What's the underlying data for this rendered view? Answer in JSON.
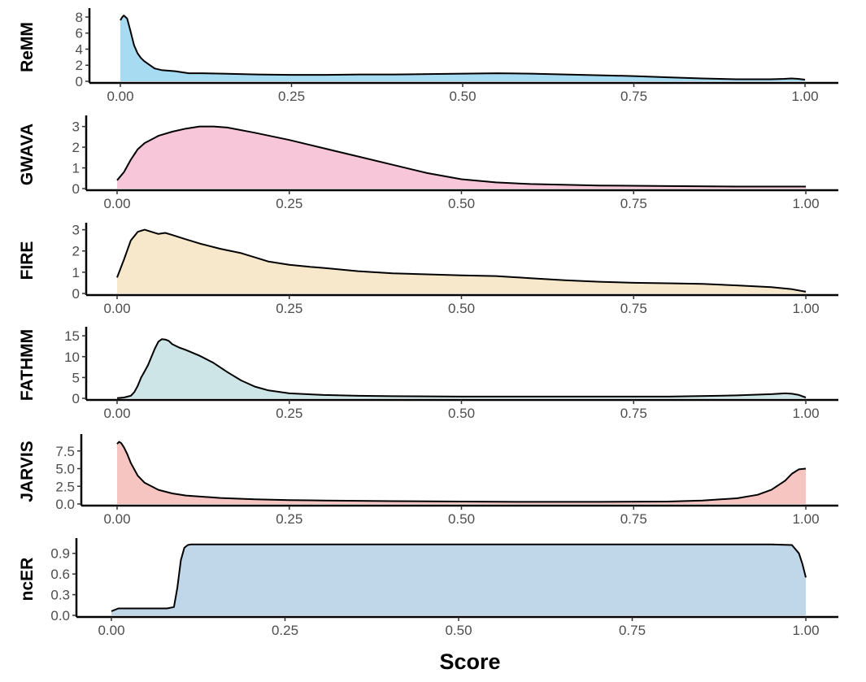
{
  "chart_data": {
    "type": "area",
    "xlabel": "Score",
    "x_ticks": [
      "0.00",
      "0.25",
      "0.50",
      "0.75",
      "1.00"
    ],
    "xlim": [
      0,
      1
    ],
    "grid": false,
    "panels": [
      {
        "name": "ReMM",
        "fill": "#a6dbf2",
        "ylim": [
          0,
          8.5
        ],
        "y_ticks": [
          {
            "v": 0,
            "t": "0"
          },
          {
            "v": 2,
            "t": "2"
          },
          {
            "v": 4,
            "t": "4"
          },
          {
            "v": 6,
            "t": "6"
          },
          {
            "v": 8,
            "t": "8"
          }
        ],
        "x": [
          0.0,
          0.003,
          0.005,
          0.01,
          0.015,
          0.02,
          0.025,
          0.03,
          0.035,
          0.04,
          0.05,
          0.06,
          0.08,
          0.1,
          0.12,
          0.15,
          0.2,
          0.25,
          0.3,
          0.35,
          0.4,
          0.45,
          0.5,
          0.55,
          0.6,
          0.65,
          0.7,
          0.75,
          0.8,
          0.85,
          0.9,
          0.95,
          0.97,
          0.98,
          0.99,
          1.0
        ],
        "y": [
          7.6,
          8.0,
          8.2,
          7.8,
          6.2,
          4.5,
          3.5,
          2.9,
          2.5,
          2.2,
          1.6,
          1.4,
          1.25,
          1.0,
          1.0,
          0.95,
          0.85,
          0.8,
          0.8,
          0.85,
          0.85,
          0.9,
          0.95,
          1.0,
          0.95,
          0.85,
          0.75,
          0.65,
          0.5,
          0.35,
          0.25,
          0.25,
          0.3,
          0.35,
          0.3,
          0.2
        ]
      },
      {
        "name": "GWAVA",
        "fill": "#f8c6d9",
        "ylim": [
          0,
          3.3
        ],
        "y_ticks": [
          {
            "v": 0,
            "t": "0"
          },
          {
            "v": 1,
            "t": "1"
          },
          {
            "v": 2,
            "t": "2"
          },
          {
            "v": 3,
            "t": "3"
          }
        ],
        "x": [
          0.0,
          0.01,
          0.02,
          0.03,
          0.04,
          0.06,
          0.08,
          0.1,
          0.12,
          0.14,
          0.16,
          0.2,
          0.25,
          0.3,
          0.35,
          0.4,
          0.45,
          0.5,
          0.55,
          0.6,
          0.7,
          0.8,
          0.9,
          1.0
        ],
        "y": [
          0.4,
          0.8,
          1.4,
          1.9,
          2.2,
          2.55,
          2.75,
          2.9,
          3.0,
          3.0,
          2.95,
          2.7,
          2.35,
          1.95,
          1.55,
          1.15,
          0.75,
          0.45,
          0.3,
          0.22,
          0.15,
          0.12,
          0.1,
          0.1
        ]
      },
      {
        "name": "FIRE",
        "fill": "#f7e8cc",
        "ylim": [
          0,
          3.1
        ],
        "y_ticks": [
          {
            "v": 0,
            "t": "0"
          },
          {
            "v": 1,
            "t": "1"
          },
          {
            "v": 2,
            "t": "2"
          },
          {
            "v": 3,
            "t": "3"
          }
        ],
        "x": [
          0.0,
          0.01,
          0.02,
          0.03,
          0.04,
          0.05,
          0.06,
          0.07,
          0.08,
          0.1,
          0.12,
          0.15,
          0.18,
          0.2,
          0.22,
          0.25,
          0.28,
          0.3,
          0.35,
          0.4,
          0.45,
          0.5,
          0.55,
          0.6,
          0.65,
          0.7,
          0.75,
          0.8,
          0.85,
          0.9,
          0.95,
          0.98,
          1.0
        ],
        "y": [
          0.75,
          1.6,
          2.5,
          2.9,
          3.0,
          2.9,
          2.8,
          2.85,
          2.75,
          2.55,
          2.35,
          2.1,
          1.9,
          1.7,
          1.5,
          1.35,
          1.25,
          1.2,
          1.05,
          0.95,
          0.9,
          0.85,
          0.82,
          0.72,
          0.62,
          0.55,
          0.5,
          0.48,
          0.45,
          0.38,
          0.3,
          0.2,
          0.08
        ]
      },
      {
        "name": "FATHMM",
        "fill": "#cde5e7",
        "ylim": [
          0,
          16
        ],
        "y_ticks": [
          {
            "v": 0,
            "t": "0"
          },
          {
            "v": 5,
            "t": "5"
          },
          {
            "v": 10,
            "t": "10"
          },
          {
            "v": 15,
            "t": "15"
          }
        ],
        "x": [
          0.0,
          0.01,
          0.02,
          0.025,
          0.03,
          0.035,
          0.04,
          0.045,
          0.05,
          0.055,
          0.06,
          0.065,
          0.07,
          0.075,
          0.08,
          0.09,
          0.1,
          0.12,
          0.14,
          0.16,
          0.18,
          0.2,
          0.22,
          0.25,
          0.3,
          0.35,
          0.4,
          0.5,
          0.6,
          0.7,
          0.8,
          0.9,
          0.95,
          0.97,
          0.98,
          0.99,
          1.0
        ],
        "y": [
          0.05,
          0.2,
          0.6,
          1.5,
          3.0,
          5.0,
          6.5,
          8.0,
          10.0,
          12.0,
          13.6,
          14.2,
          14.1,
          13.8,
          13.0,
          12.2,
          11.6,
          10.2,
          8.5,
          6.3,
          4.3,
          2.8,
          1.9,
          1.2,
          0.8,
          0.6,
          0.5,
          0.4,
          0.4,
          0.4,
          0.4,
          0.7,
          1.0,
          1.2,
          1.1,
          0.8,
          0.2
        ]
      },
      {
        "name": "JARVIS",
        "fill": "#f7c5c1",
        "ylim": [
          0,
          9.2
        ],
        "y_ticks": [
          {
            "v": 0,
            "t": "0.0"
          },
          {
            "v": 2.5,
            "t": "2.5"
          },
          {
            "v": 5,
            "t": "5.0"
          },
          {
            "v": 7.5,
            "t": "7.5"
          }
        ],
        "x": [
          0.0,
          0.003,
          0.006,
          0.01,
          0.015,
          0.02,
          0.03,
          0.04,
          0.06,
          0.08,
          0.1,
          0.15,
          0.2,
          0.25,
          0.3,
          0.4,
          0.5,
          0.6,
          0.7,
          0.8,
          0.85,
          0.9,
          0.93,
          0.95,
          0.97,
          0.98,
          0.99,
          1.0
        ],
        "y": [
          8.5,
          8.8,
          8.6,
          8.0,
          7.0,
          5.8,
          4.0,
          3.0,
          2.0,
          1.5,
          1.2,
          0.85,
          0.65,
          0.55,
          0.5,
          0.4,
          0.35,
          0.3,
          0.3,
          0.35,
          0.5,
          0.8,
          1.3,
          2.0,
          3.3,
          4.3,
          4.9,
          5.0
        ]
      },
      {
        "name": "ncER",
        "fill": "#c0d6e9",
        "ylim": [
          0,
          1.05
        ],
        "y_ticks": [
          {
            "v": 0,
            "t": "0.0"
          },
          {
            "v": 0.3,
            "t": "0.3"
          },
          {
            "v": 0.6,
            "t": "0.6"
          },
          {
            "v": 0.9,
            "t": "0.9"
          }
        ],
        "x": [
          0.0,
          0.01,
          0.02,
          0.05,
          0.08,
          0.09,
          0.095,
          0.1,
          0.105,
          0.11,
          0.115,
          0.12,
          0.2,
          0.4,
          0.6,
          0.8,
          0.95,
          0.98,
          0.99,
          0.995,
          1.0
        ],
        "y": [
          0.06,
          0.1,
          0.1,
          0.1,
          0.1,
          0.12,
          0.4,
          0.8,
          0.98,
          1.02,
          1.03,
          1.03,
          1.03,
          1.03,
          1.03,
          1.03,
          1.03,
          1.02,
          0.9,
          0.75,
          0.55
        ]
      }
    ]
  }
}
